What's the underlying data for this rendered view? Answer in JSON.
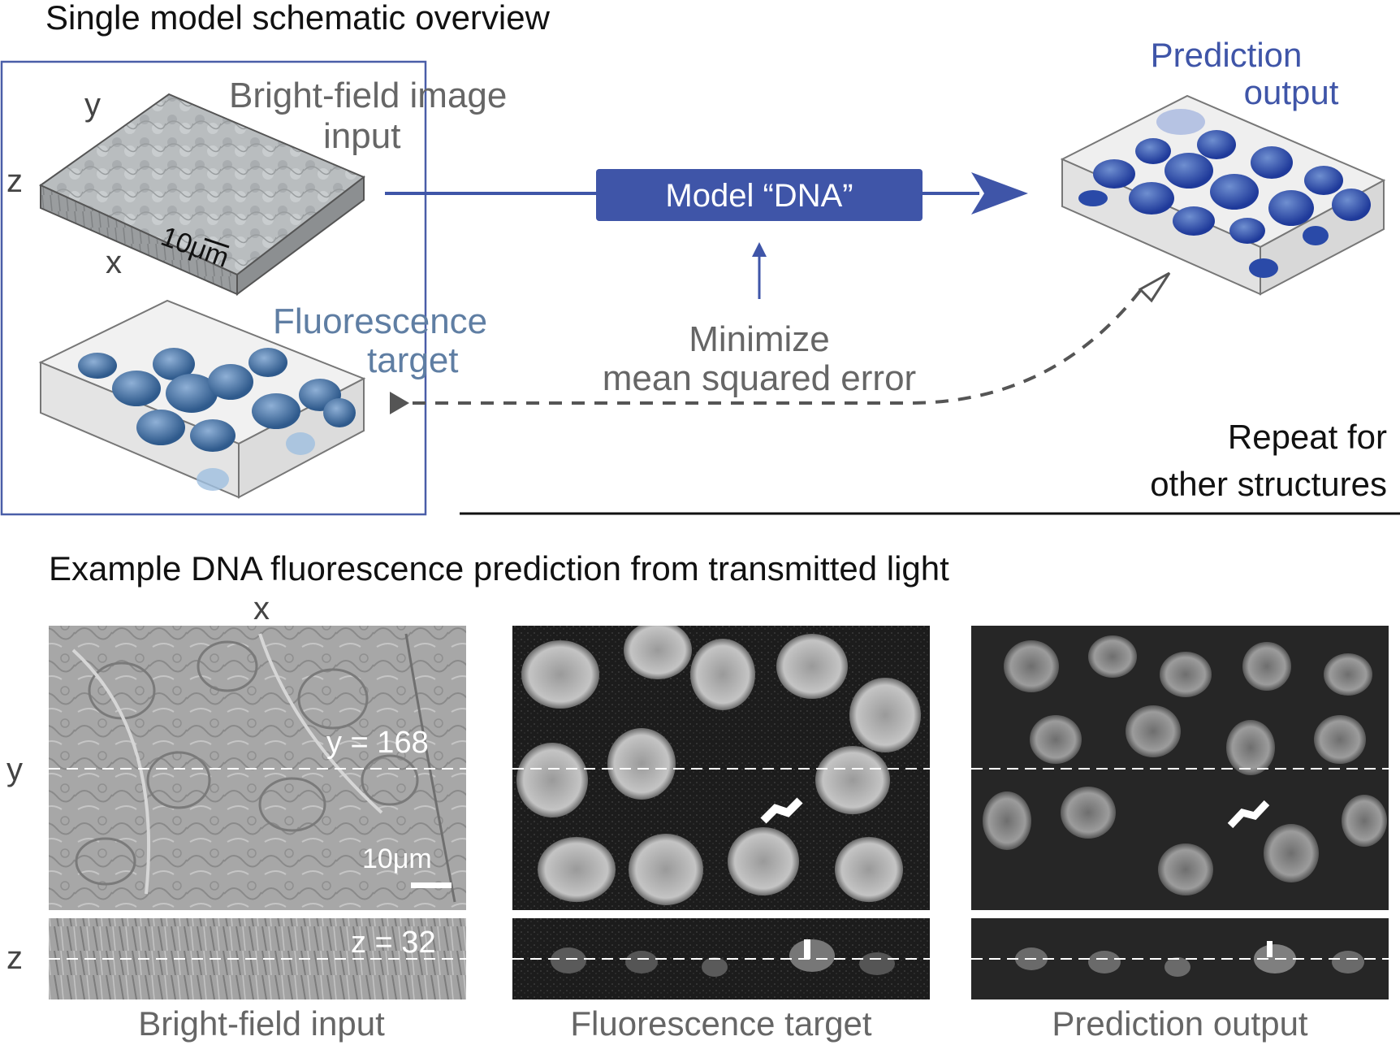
{
  "top": {
    "title": "Single model schematic overview",
    "brightfield_label_line1": "Bright-field image",
    "brightfield_label_line2": "input",
    "fluorescence_label_line1": "Fluorescence",
    "fluorescence_label_line2": "target",
    "axis_y": "y",
    "axis_z": "z",
    "axis_x": "x",
    "scale_bar": "10μm",
    "model_box": "Model “DNA”",
    "minimize_line1": "Minimize",
    "minimize_line2": "mean squared error",
    "prediction_line1": "Prediction",
    "prediction_line2": "output",
    "repeat_line1": "Repeat for",
    "repeat_line2": "other structures"
  },
  "bottom": {
    "title": "Example DNA fluorescence prediction from transmitted light",
    "axis_x": "x",
    "axis_y": "y",
    "axis_z": "z",
    "y_slice": "y = 168",
    "z_slice": "z = 32",
    "scale_bar": "10μm",
    "panels": [
      {
        "caption": "Bright-field input"
      },
      {
        "caption": "Fluorescence target"
      },
      {
        "caption": "Prediction output"
      }
    ]
  },
  "colors": {
    "model_blue": "#3f55a8",
    "steel_blue": "#5f7ea3",
    "frame_blue": "#4a5ea8",
    "arrow_dark": "#555555"
  }
}
